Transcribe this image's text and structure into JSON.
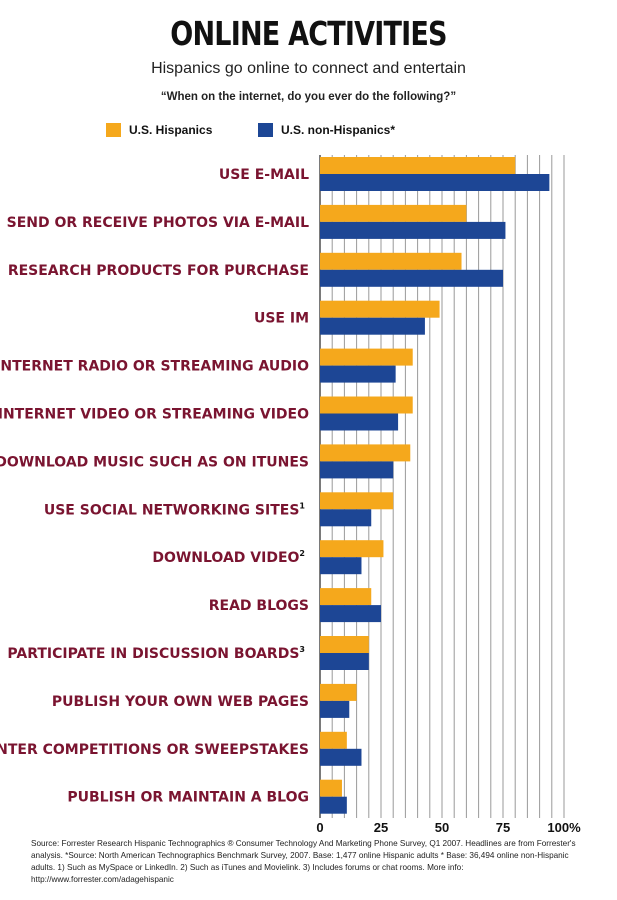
{
  "header": {
    "title": "ONLINE ACTIVITIES",
    "subtitle": "Hispanics go online to connect and entertain",
    "question": "“When on the internet, do you ever do the following?”"
  },
  "chart_data": {
    "type": "bar",
    "orientation": "horizontal",
    "categories": [
      "USE E-MAIL",
      "SEND OR RECEIVE PHOTOS VIA E-MAIL",
      "RESEARCH PRODUCTS FOR PURCHASE",
      "USE IM",
      "LISTEN TO INTERNET RADIO OR STREAMING AUDIO",
      "WATCH INTERNET VIDEO OR STREAMING VIDEO",
      "DOWNLOAD MUSIC SUCH AS ON ITUNES",
      "USE SOCIAL NETWORKING SITES",
      "DOWNLOAD VIDEO",
      "READ BLOGS",
      "PARTICIPATE IN DISCUSSION BOARDS",
      "PUBLISH YOUR OWN WEB PAGES",
      "ENTER COMPETITIONS OR SWEEPSTAKES",
      "PUBLISH OR MAINTAIN A BLOG"
    ],
    "footnotes": [
      "",
      "",
      "",
      "",
      "",
      "",
      "",
      "1",
      "2",
      "",
      "3",
      "",
      "",
      ""
    ],
    "series": [
      {
        "name": "U.S. Hispanics",
        "color": "#f5a81c",
        "values": [
          80,
          60,
          58,
          49,
          38,
          38,
          37,
          30,
          26,
          21,
          20,
          15,
          11,
          9
        ]
      },
      {
        "name": "U.S. non-Hispanics*",
        "color": "#1d4695",
        "values": [
          94,
          76,
          75,
          43,
          31,
          32,
          30,
          21,
          17,
          25,
          20,
          12,
          17,
          11
        ]
      }
    ],
    "xlim": [
      0,
      100
    ],
    "ticks": [
      0,
      25,
      50,
      75,
      100
    ],
    "tick_labels": [
      "0",
      "25",
      "50",
      "75",
      "100%"
    ],
    "grid": true,
    "legend": "top-left"
  },
  "source": "Source: Forrester Research Hispanic Technographics ® Consumer Technology And Marketing Phone Survey, Q1 2007. Headlines are from Forrester's analysis. *Source: North American Technographics Benchmark Survey, 2007. Base: 1,477 online Hispanic adults * Base: 36,494 online non-Hispanic adults. 1) Such as MySpace or LinkedIn. 2) Such as iTunes and Movielink. 3) Includes forums or chat rooms. More info: http://www.forrester.com/adagehispanic"
}
